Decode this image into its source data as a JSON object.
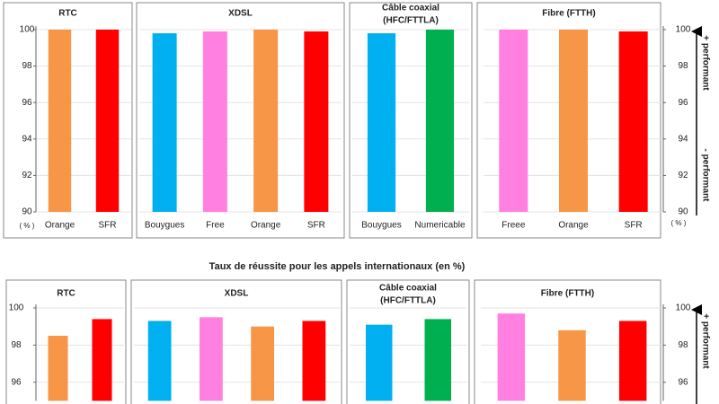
{
  "chart_data": [
    {
      "type": "bar",
      "unit_label": "( % )",
      "ylim": [
        90,
        100
      ],
      "yticks": [
        90,
        92,
        94,
        96,
        98,
        100
      ],
      "grid": true,
      "annotations": [
        "+ performant",
        "- performant"
      ],
      "panels": [
        {
          "title": "RTC",
          "categories": [
            "Orange",
            "SFR"
          ],
          "values": [
            100,
            100
          ],
          "colors": [
            "#f79646",
            "#ff0000"
          ]
        },
        {
          "title": "XDSL",
          "categories": [
            "Bouygues",
            "Free",
            "Orange",
            "SFR"
          ],
          "values": [
            99.8,
            99.9,
            100,
            99.9
          ],
          "colors": [
            "#00b0f0",
            "#ff80e0",
            "#f79646",
            "#ff0000"
          ]
        },
        {
          "title": [
            "Câble coaxial",
            "(HFC/FTTLA)"
          ],
          "categories": [
            "Bouygues",
            "Numericable"
          ],
          "values": [
            99.8,
            100
          ],
          "colors": [
            "#00b0f0",
            "#00b050"
          ]
        },
        {
          "title": "Fibre (FTTH)",
          "categories": [
            "Freee",
            "Orange",
            "SFR"
          ],
          "values": [
            100,
            100,
            99.9
          ],
          "colors": [
            "#ff80e0",
            "#f79646",
            "#ff0000"
          ]
        }
      ]
    },
    {
      "type": "bar",
      "title": "Taux de réussite pour les appels internationaux (en %)",
      "ylim": [
        95,
        100
      ],
      "yticks": [
        96,
        98,
        100
      ],
      "grid": true,
      "annotations": [
        "+ performant"
      ],
      "panels": [
        {
          "title": "RTC",
          "categories": [
            null,
            null
          ],
          "values": [
            98.5,
            99.4
          ],
          "colors": [
            "#f79646",
            "#ff0000"
          ]
        },
        {
          "title": "XDSL",
          "categories": [
            null,
            null,
            null,
            null
          ],
          "values": [
            99.3,
            99.5,
            99.0,
            99.3
          ],
          "colors": [
            "#00b0f0",
            "#ff80e0",
            "#f79646",
            "#ff0000"
          ]
        },
        {
          "title": [
            "Câble coaxial",
            "(HFC/FTTLA)"
          ],
          "categories": [
            null,
            null
          ],
          "values": [
            99.1,
            99.4
          ],
          "colors": [
            "#00b0f0",
            "#00b050"
          ]
        },
        {
          "title": "Fibre (FTTH)",
          "categories": [
            null,
            null,
            null
          ],
          "values": [
            99.7,
            98.8,
            99.3
          ],
          "colors": [
            "#ff80e0",
            "#f79646",
            "#ff0000"
          ]
        }
      ]
    }
  ]
}
